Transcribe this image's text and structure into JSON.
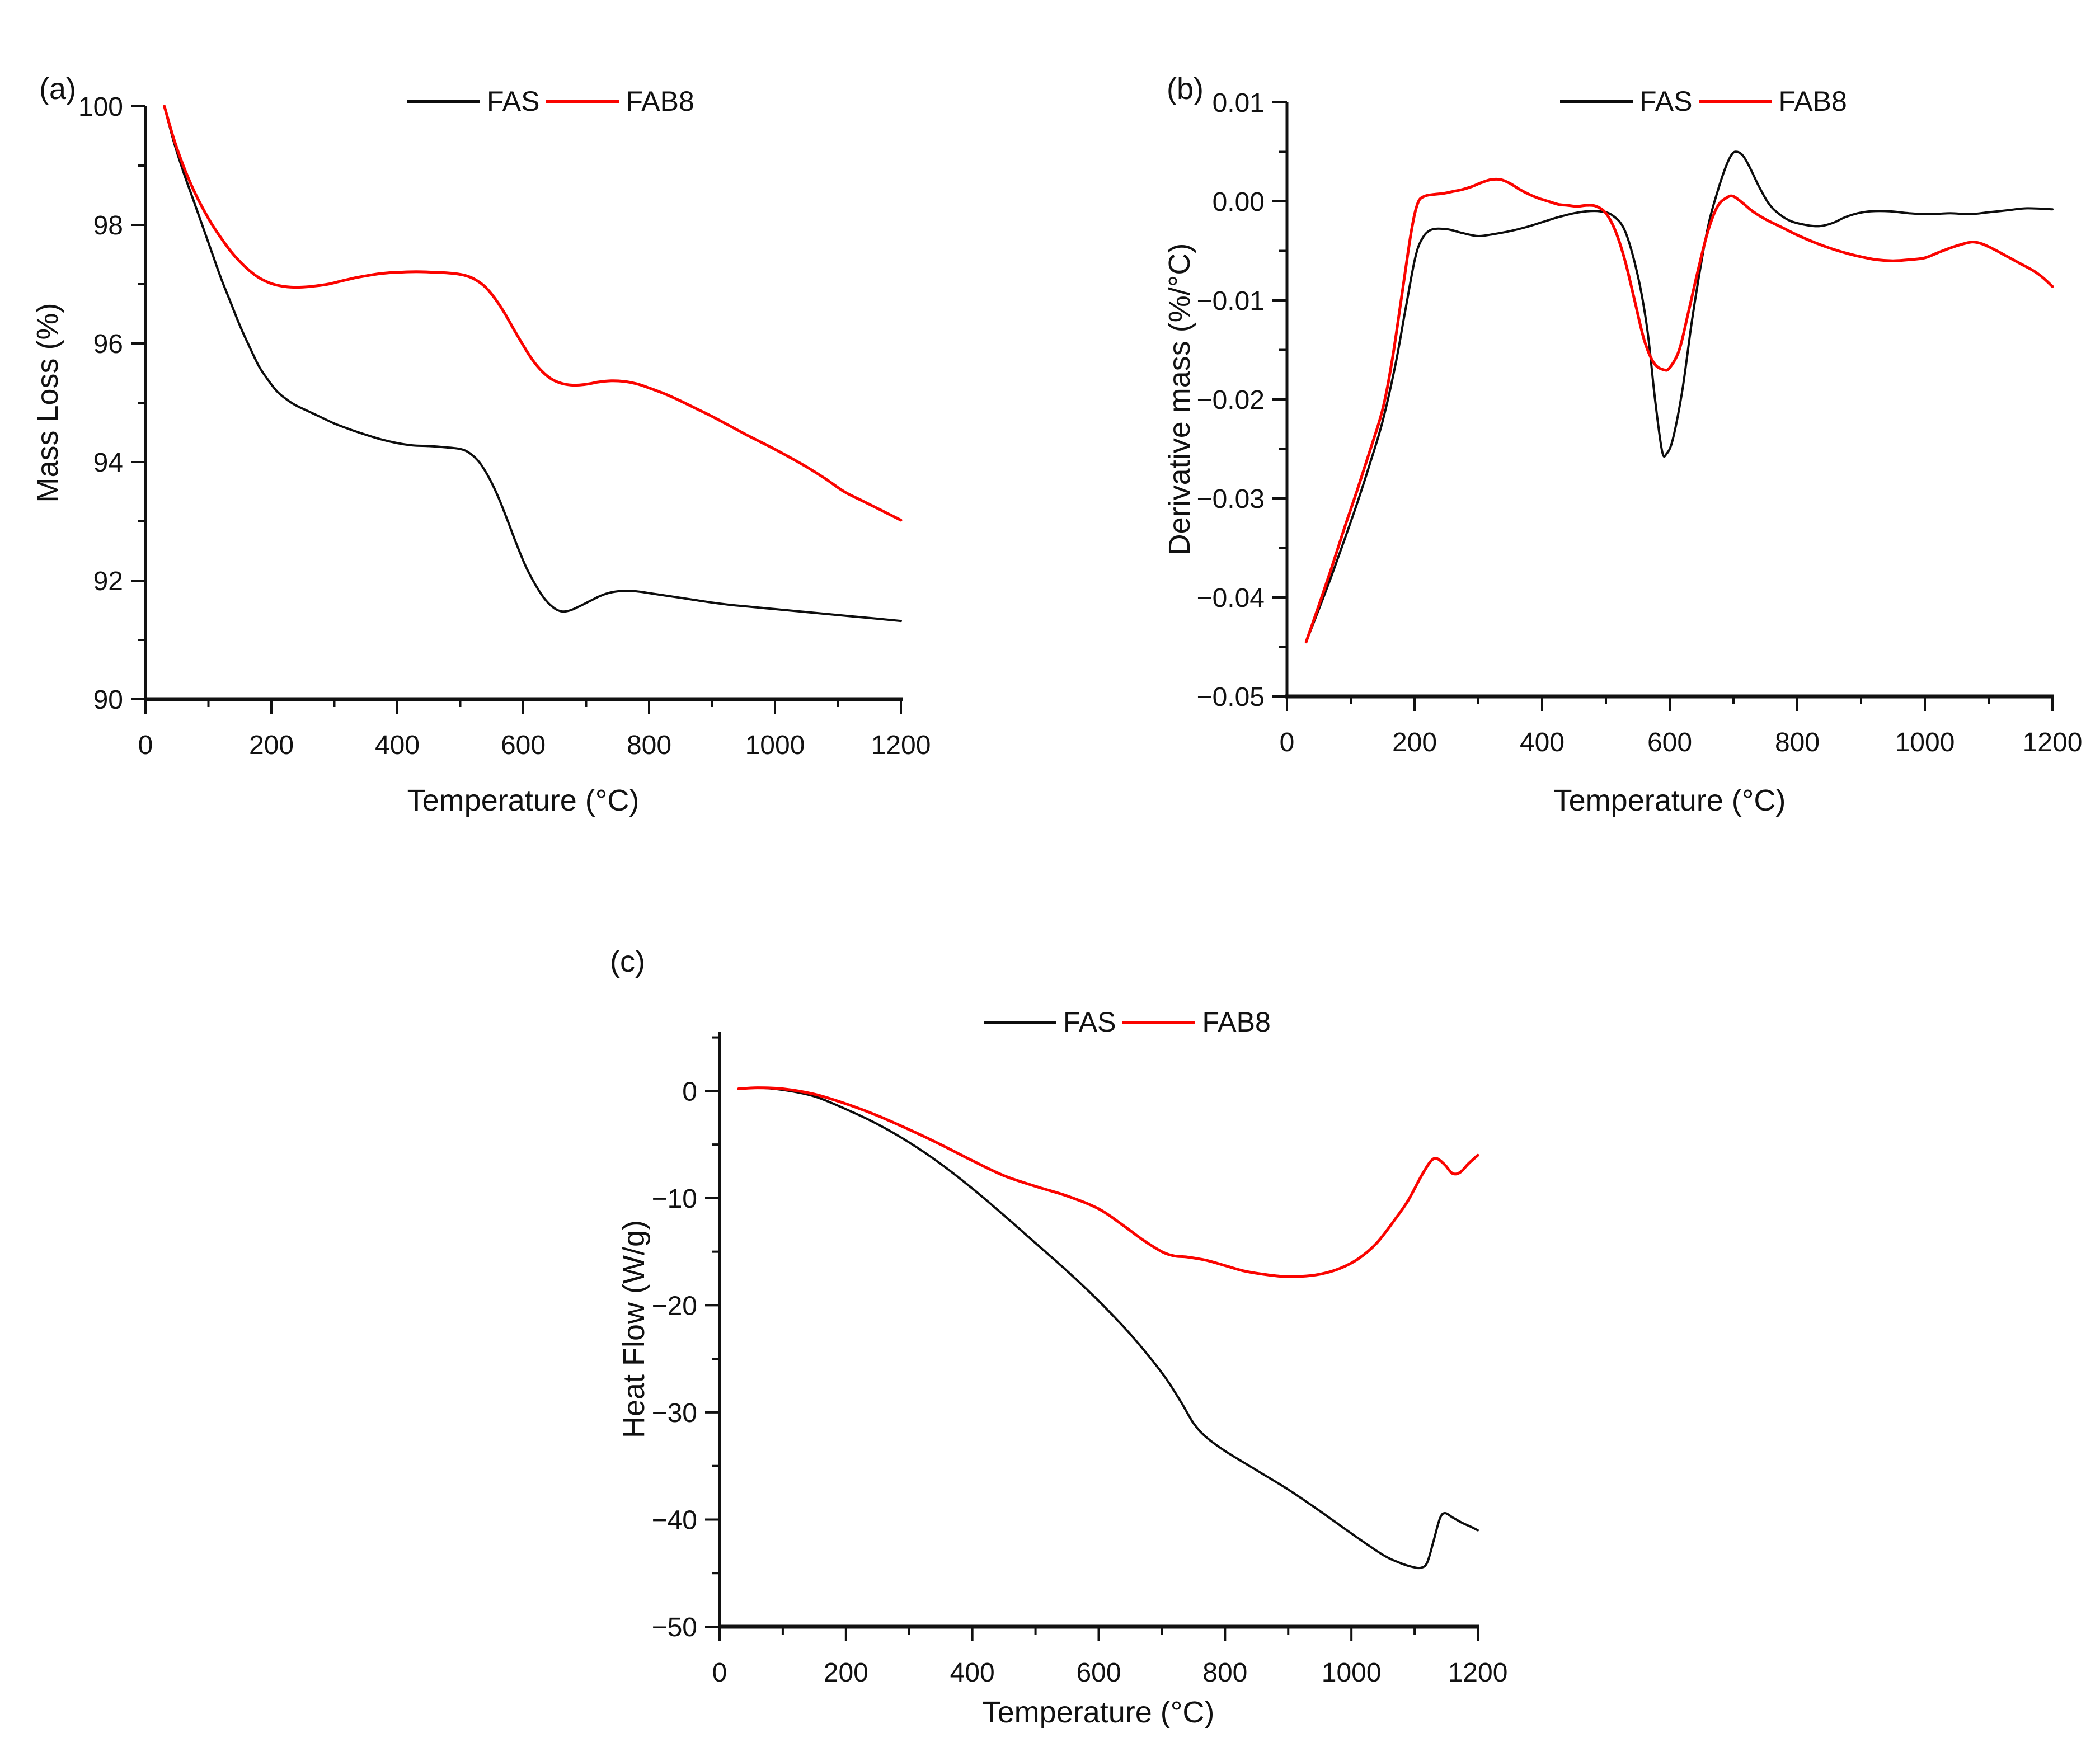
{
  "figure": {
    "background": "#ffffff",
    "text_color": "#111111",
    "fas_color": "#0d0d0d",
    "fab8_color": "#fa0400"
  },
  "chart_data": [
    {
      "panel_label": "(a)",
      "type": "line",
      "title": "",
      "xlabel": "Temperature (°C)",
      "ylabel": "Mass Loss (%)",
      "xlim": [
        0,
        1200
      ],
      "ylim": [
        90,
        100
      ],
      "grid": false,
      "legend_position": "top-center",
      "xticks": {
        "values": [
          0,
          200,
          400,
          600,
          800,
          1000,
          1200
        ],
        "labels": [
          "0",
          "200",
          "400",
          "600",
          "800",
          "1000",
          "1200"
        ],
        "minor_step": 100
      },
      "yticks": {
        "values": [
          100,
          98,
          96,
          94,
          92,
          90
        ],
        "labels": [
          "100",
          "98",
          "96",
          "94",
          "92",
          "90"
        ],
        "minor_step": 1
      },
      "series": [
        {
          "name": "FAS",
          "color": "#0d0d0d",
          "line_width": 4,
          "x": [
            30,
            45,
            60,
            75,
            90,
            105,
            120,
            135,
            150,
            165,
            180,
            195,
            210,
            225,
            240,
            260,
            280,
            300,
            325,
            350,
            375,
            400,
            425,
            450,
            475,
            500,
            515,
            530,
            545,
            560,
            575,
            590,
            605,
            620,
            635,
            650,
            662,
            675,
            690,
            705,
            720,
            735,
            750,
            765,
            780,
            800,
            825,
            850,
            875,
            900,
            930,
            960,
            1000,
            1040,
            1080,
            1120,
            1160,
            1200
          ],
          "y": [
            100,
            99.4,
            98.9,
            98.45,
            98.0,
            97.55,
            97.1,
            96.7,
            96.3,
            95.95,
            95.62,
            95.38,
            95.18,
            95.05,
            94.95,
            94.85,
            94.75,
            94.65,
            94.55,
            94.46,
            94.38,
            94.32,
            94.28,
            94.27,
            94.25,
            94.22,
            94.15,
            94.0,
            93.75,
            93.42,
            93.02,
            92.6,
            92.22,
            91.92,
            91.68,
            91.53,
            91.48,
            91.5,
            91.57,
            91.65,
            91.73,
            91.79,
            91.82,
            91.83,
            91.82,
            91.79,
            91.75,
            91.71,
            91.67,
            91.63,
            91.59,
            91.56,
            91.52,
            91.48,
            91.44,
            91.4,
            91.36,
            91.32
          ]
        },
        {
          "name": "FAB8",
          "color": "#fa0400",
          "line_width": 5,
          "x": [
            30,
            45,
            60,
            75,
            90,
            105,
            120,
            135,
            150,
            165,
            180,
            195,
            210,
            230,
            250,
            270,
            290,
            310,
            330,
            350,
            375,
            400,
            430,
            460,
            490,
            510,
            525,
            540,
            555,
            570,
            585,
            600,
            615,
            630,
            645,
            660,
            675,
            690,
            705,
            720,
            740,
            760,
            780,
            800,
            825,
            850,
            875,
            900,
            930,
            960,
            990,
            1020,
            1050,
            1080,
            1110,
            1140,
            1170,
            1200
          ],
          "y": [
            100,
            99.45,
            99.0,
            98.62,
            98.3,
            98.02,
            97.78,
            97.56,
            97.38,
            97.23,
            97.11,
            97.03,
            96.98,
            96.95,
            96.95,
            96.97,
            97.0,
            97.05,
            97.1,
            97.14,
            97.18,
            97.2,
            97.21,
            97.2,
            97.18,
            97.14,
            97.07,
            96.95,
            96.76,
            96.52,
            96.24,
            95.97,
            95.72,
            95.53,
            95.4,
            95.33,
            95.3,
            95.3,
            95.32,
            95.35,
            95.37,
            95.36,
            95.32,
            95.25,
            95.15,
            95.03,
            94.9,
            94.77,
            94.6,
            94.43,
            94.27,
            94.1,
            93.92,
            93.72,
            93.5,
            93.34,
            93.18,
            93.02
          ]
        }
      ]
    },
    {
      "panel_label": "(b)",
      "type": "line",
      "title": "",
      "xlabel": "Temperature (°C)",
      "ylabel": "Derivative mass (%/°C)",
      "xlim": [
        0,
        1200
      ],
      "ylim": [
        -0.05,
        0.01
      ],
      "grid": false,
      "legend_position": "top-center",
      "xticks": {
        "values": [
          0,
          200,
          400,
          600,
          800,
          1000,
          1200
        ],
        "labels": [
          "0",
          "200",
          "400",
          "600",
          "800",
          "1000",
          "1200"
        ],
        "minor_step": 100
      },
      "yticks": {
        "values": [
          0.01,
          0.0,
          -0.01,
          -0.02,
          -0.03,
          -0.04,
          -0.05
        ],
        "labels": [
          "0.01",
          "0.00",
          "−0.01",
          "−0.02",
          "−0.03",
          "−0.04",
          "−0.05"
        ],
        "minor_step": 0.005
      },
      "series": [
        {
          "name": "FAS",
          "color": "#0d0d0d",
          "line_width": 4,
          "x": [
            30,
            50,
            70,
            90,
            110,
            130,
            150,
            170,
            185,
            200,
            210,
            225,
            250,
            275,
            300,
            325,
            350,
            375,
            400,
            425,
            450,
            470,
            490,
            510,
            530,
            550,
            565,
            577,
            588,
            595,
            605,
            620,
            635,
            650,
            662,
            675,
            688,
            698,
            706,
            715,
            725,
            740,
            755,
            770,
            790,
            815,
            835,
            855,
            875,
            895,
            915,
            945,
            975,
            1005,
            1040,
            1070,
            1100,
            1130,
            1160,
            1200
          ],
          "y": [
            -0.0445,
            -0.0412,
            -0.0378,
            -0.0342,
            -0.0305,
            -0.0265,
            -0.0222,
            -0.0165,
            -0.0112,
            -0.006,
            -0.004,
            -0.0029,
            -0.0028,
            -0.0032,
            -0.0035,
            -0.0033,
            -0.003,
            -0.0026,
            -0.0021,
            -0.0016,
            -0.0012,
            -0.001,
            -0.001,
            -0.0014,
            -0.003,
            -0.0075,
            -0.013,
            -0.02,
            -0.0252,
            -0.0255,
            -0.024,
            -0.019,
            -0.012,
            -0.006,
            -0.002,
            0.001,
            0.0035,
            0.0048,
            0.005,
            0.0046,
            0.0035,
            0.0015,
            -0.0002,
            -0.0012,
            -0.002,
            -0.0024,
            -0.0025,
            -0.0022,
            -0.0016,
            -0.0012,
            -0.001,
            -0.001,
            -0.0012,
            -0.0013,
            -0.0012,
            -0.0013,
            -0.0011,
            -0.0009,
            -0.0007,
            -0.0008
          ]
        },
        {
          "name": "FAB8",
          "color": "#fa0400",
          "line_width": 5,
          "x": [
            30,
            50,
            70,
            90,
            110,
            130,
            150,
            165,
            180,
            195,
            205,
            215,
            230,
            245,
            260,
            275,
            290,
            305,
            320,
            335,
            350,
            365,
            380,
            395,
            410,
            425,
            440,
            455,
            470,
            485,
            500,
            515,
            530,
            545,
            560,
            575,
            590,
            600,
            615,
            630,
            645,
            660,
            675,
            690,
            700,
            715,
            730,
            750,
            775,
            800,
            825,
            850,
            875,
            900,
            925,
            950,
            975,
            1000,
            1020,
            1040,
            1060,
            1075,
            1090,
            1110,
            1130,
            1150,
            1170,
            1185,
            1200
          ],
          "y": [
            -0.0445,
            -0.0408,
            -0.037,
            -0.033,
            -0.0292,
            -0.0252,
            -0.021,
            -0.016,
            -0.0095,
            -0.003,
            -0.0002,
            0.0005,
            0.0007,
            0.0008,
            0.001,
            0.0012,
            0.0015,
            0.0019,
            0.0022,
            0.0022,
            0.0018,
            0.0012,
            0.0007,
            0.0003,
            0.0,
            -0.0003,
            -0.0004,
            -0.0005,
            -0.0004,
            -0.0005,
            -0.0012,
            -0.003,
            -0.006,
            -0.01,
            -0.014,
            -0.0163,
            -0.017,
            -0.0168,
            -0.015,
            -0.011,
            -0.0068,
            -0.003,
            -0.0005,
            0.0004,
            0.0005,
            -0.0002,
            -0.001,
            -0.0018,
            -0.0026,
            -0.0034,
            -0.0041,
            -0.0047,
            -0.0052,
            -0.0056,
            -0.0059,
            -0.006,
            -0.0059,
            -0.0057,
            -0.0052,
            -0.0047,
            -0.0043,
            -0.0041,
            -0.0043,
            -0.0049,
            -0.0056,
            -0.0063,
            -0.007,
            -0.0077,
            -0.0086
          ]
        }
      ]
    },
    {
      "panel_label": "(c)",
      "type": "line",
      "title": "",
      "xlabel": "Temperature (°C)",
      "ylabel": "Heat Flow (W/g)",
      "xlim": [
        0,
        1200
      ],
      "ylim": [
        -50,
        5.5
      ],
      "grid": false,
      "legend_position": "top-center",
      "xticks": {
        "values": [
          0,
          200,
          400,
          600,
          800,
          1000,
          1200
        ],
        "labels": [
          "0",
          "200",
          "400",
          "600",
          "800",
          "1000",
          "1200"
        ],
        "minor_step": 100
      },
      "yticks": {
        "values": [
          0,
          -10,
          -20,
          -30,
          -40,
          -50
        ],
        "labels": [
          "0",
          "−10",
          "−20",
          "−30",
          "−40",
          "−50"
        ],
        "minor_step": 5
      },
      "series": [
        {
          "name": "FAS",
          "color": "#0d0d0d",
          "line_width": 4,
          "x": [
            30,
            60,
            100,
            150,
            200,
            250,
            300,
            350,
            400,
            450,
            500,
            550,
            600,
            650,
            700,
            730,
            750,
            770,
            800,
            850,
            900,
            950,
            1000,
            1050,
            1075,
            1095,
            1110,
            1120,
            1130,
            1140,
            1148,
            1160,
            1175,
            1190,
            1200
          ],
          "y": [
            0.2,
            0.3,
            0.1,
            -0.5,
            -1.7,
            -3.1,
            -4.8,
            -6.8,
            -9.1,
            -11.6,
            -14.2,
            -16.8,
            -19.6,
            -22.7,
            -26.3,
            -29.0,
            -31.0,
            -32.3,
            -33.6,
            -35.4,
            -37.2,
            -39.2,
            -41.3,
            -43.3,
            -44.0,
            -44.4,
            -44.5,
            -44.0,
            -42.0,
            -39.9,
            -39.4,
            -39.8,
            -40.3,
            -40.7,
            -41.0
          ]
        },
        {
          "name": "FAB8",
          "color": "#fa0400",
          "line_width": 5,
          "x": [
            30,
            60,
            100,
            150,
            200,
            250,
            300,
            350,
            400,
            450,
            500,
            550,
            600,
            640,
            670,
            700,
            720,
            740,
            770,
            800,
            830,
            860,
            890,
            920,
            950,
            980,
            1010,
            1040,
            1070,
            1090,
            1110,
            1125,
            1135,
            1148,
            1160,
            1172,
            1185,
            1200
          ],
          "y": [
            0.2,
            0.3,
            0.2,
            -0.3,
            -1.2,
            -2.3,
            -3.6,
            -5.0,
            -6.5,
            -7.9,
            -8.9,
            -9.8,
            -11.0,
            -12.6,
            -13.9,
            -15.0,
            -15.4,
            -15.5,
            -15.8,
            -16.3,
            -16.8,
            -17.1,
            -17.3,
            -17.3,
            -17.1,
            -16.6,
            -15.7,
            -14.2,
            -11.9,
            -10.2,
            -8.0,
            -6.6,
            -6.3,
            -6.9,
            -7.7,
            -7.6,
            -6.8,
            -6.0
          ]
        }
      ]
    }
  ]
}
